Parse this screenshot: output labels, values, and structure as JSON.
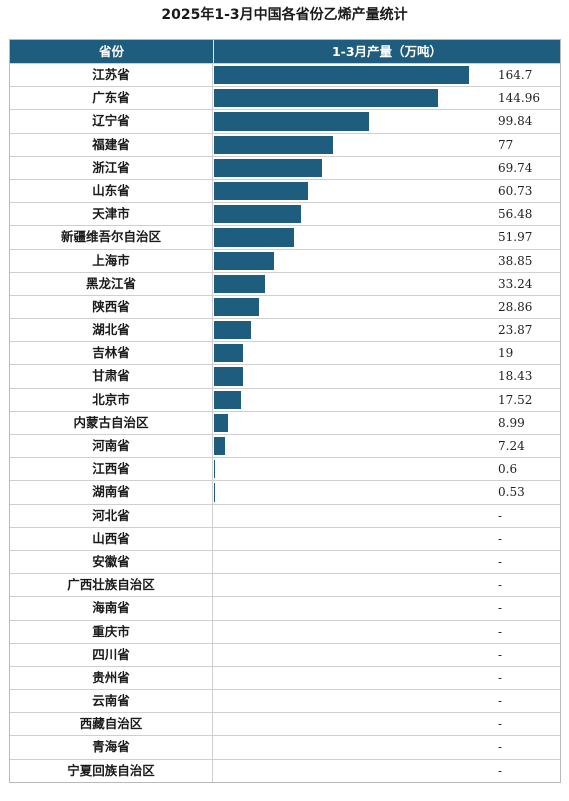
{
  "chart_data": {
    "type": "bar",
    "title": "2025年1-3月中国各省份乙烯产量统计",
    "header": {
      "col1": "省份",
      "col2": "1-3月产量（万吨）"
    },
    "rows": [
      {
        "name": "江苏省",
        "label": "164.7",
        "value": 164.7
      },
      {
        "name": "广东省",
        "label": "144.96",
        "value": 144.96
      },
      {
        "name": "辽宁省",
        "label": "99.84",
        "value": 99.84
      },
      {
        "name": "福建省",
        "label": "77",
        "value": 77
      },
      {
        "name": "浙江省",
        "label": "69.74",
        "value": 69.74
      },
      {
        "name": "山东省",
        "label": "60.73",
        "value": 60.73
      },
      {
        "name": "天津市",
        "label": "56.48",
        "value": 56.48
      },
      {
        "name": "新疆维吾尔自治区",
        "label": "51.97",
        "value": 51.97
      },
      {
        "name": "上海市",
        "label": "38.85",
        "value": 38.85
      },
      {
        "name": "黑龙江省",
        "label": "33.24",
        "value": 33.24
      },
      {
        "name": "陕西省",
        "label": "28.86",
        "value": 28.86
      },
      {
        "name": "湖北省",
        "label": "23.87",
        "value": 23.87
      },
      {
        "name": "吉林省",
        "label": "19",
        "value": 19
      },
      {
        "name": "甘肃省",
        "label": "18.43",
        "value": 18.43
      },
      {
        "name": "北京市",
        "label": "17.52",
        "value": 17.52
      },
      {
        "name": "内蒙古自治区",
        "label": "8.99",
        "value": 8.99
      },
      {
        "name": "河南省",
        "label": "7.24",
        "value": 7.24
      },
      {
        "name": "江西省",
        "label": "0.6",
        "value": 0.6
      },
      {
        "name": "湖南省",
        "label": "0.53",
        "value": 0.53
      },
      {
        "name": "河北省",
        "label": "-",
        "value": null
      },
      {
        "name": "山西省",
        "label": "-",
        "value": null
      },
      {
        "name": "安徽省",
        "label": "-",
        "value": null
      },
      {
        "name": "广西壮族自治区",
        "label": "-",
        "value": null
      },
      {
        "name": "海南省",
        "label": "-",
        "value": null
      },
      {
        "name": "重庆市",
        "label": "-",
        "value": null
      },
      {
        "name": "四川省",
        "label": "-",
        "value": null
      },
      {
        "name": "贵州省",
        "label": "-",
        "value": null
      },
      {
        "name": "云南省",
        "label": "-",
        "value": null
      },
      {
        "name": "西藏自治区",
        "label": "-",
        "value": null
      },
      {
        "name": "青海省",
        "label": "-",
        "value": null
      },
      {
        "name": "宁夏回族自治区",
        "label": "-",
        "value": null
      }
    ],
    "bar_color": "#1f5d7f"
  }
}
